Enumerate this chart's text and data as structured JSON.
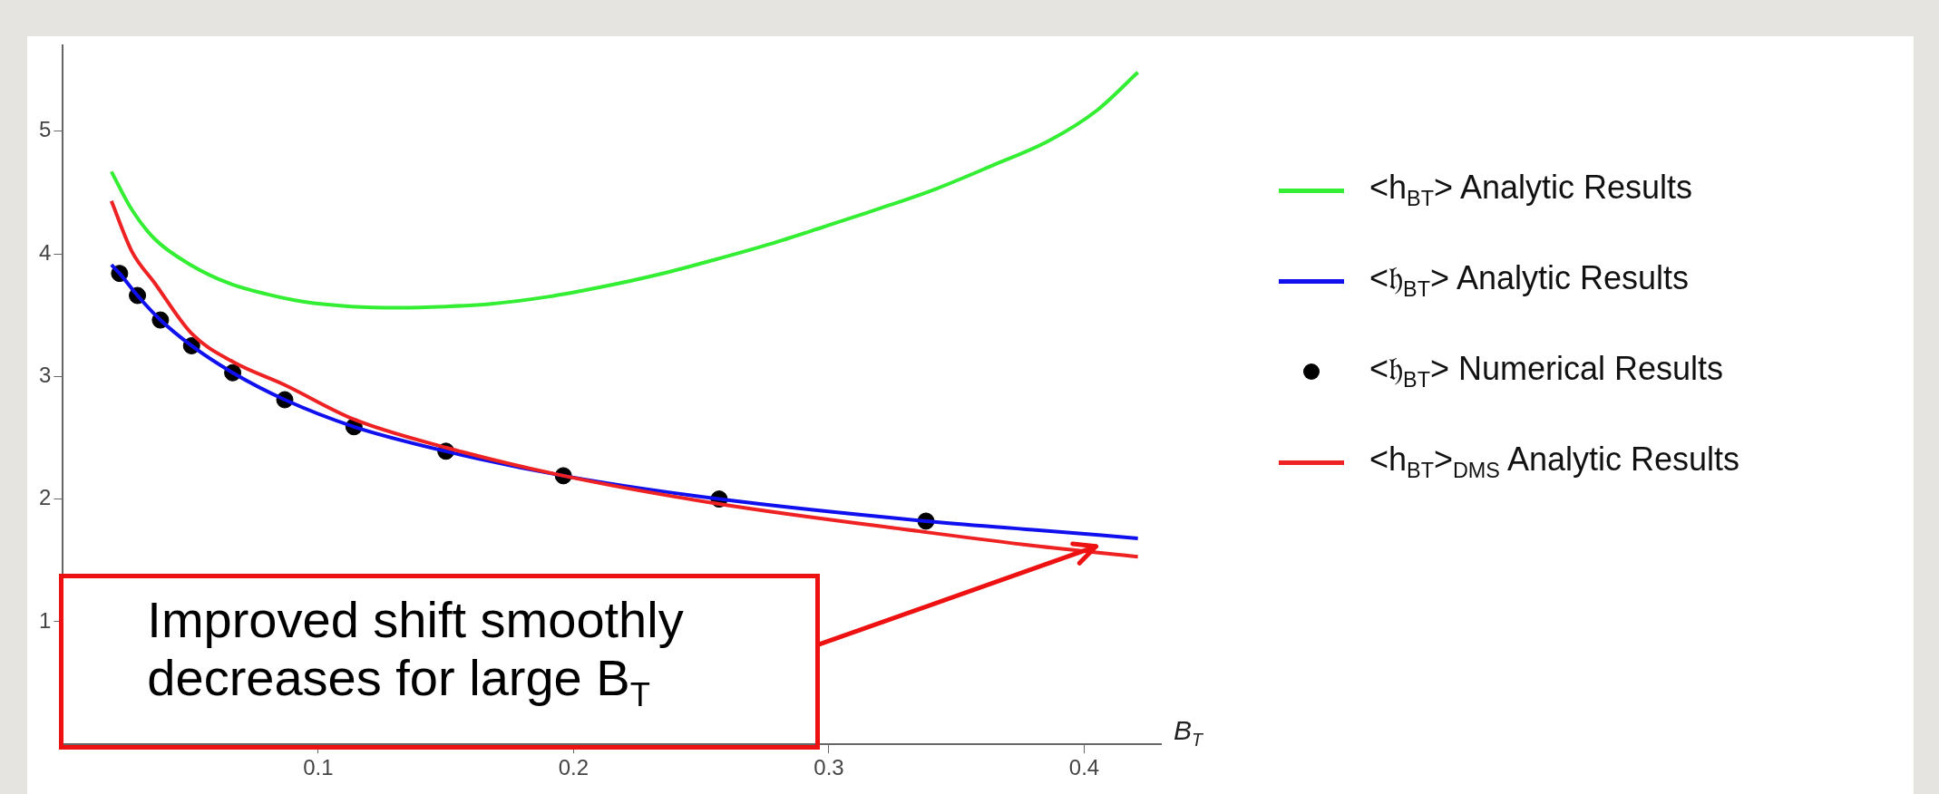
{
  "chart_data": {
    "type": "line",
    "xlabel": "B$_{T}$",
    "xlim": [
      0,
      0.43
    ],
    "ylim": [
      0,
      5.7
    ],
    "xticks": [
      0.1,
      0.2,
      0.3,
      0.4
    ],
    "yticks": [
      1,
      2,
      3,
      4,
      5
    ],
    "grid": false,
    "legend": "right",
    "line_style": "solid",
    "series": [
      {
        "name": "<h$_{BT}$> Analytic Results",
        "color": "#33ee33",
        "x": [
          0.019,
          0.027,
          0.036,
          0.05,
          0.065,
          0.08,
          0.094,
          0.113,
          0.132,
          0.15,
          0.167,
          0.19,
          0.211,
          0.233,
          0.255,
          0.277,
          0.298,
          0.32,
          0.342,
          0.364,
          0.386,
          0.405,
          0.421
        ],
        "values": [
          4.67,
          4.36,
          4.12,
          3.91,
          3.76,
          3.67,
          3.61,
          3.57,
          3.56,
          3.57,
          3.59,
          3.65,
          3.73,
          3.83,
          3.95,
          4.08,
          4.22,
          4.37,
          4.53,
          4.72,
          4.92,
          5.17,
          5.48
        ]
      },
      {
        "name": "<𝔥$_{BT}$> Analytic Results",
        "color": "#1010ee",
        "x": [
          0.019,
          0.0222,
          0.0292,
          0.0382,
          0.0504,
          0.0665,
          0.0869,
          0.114,
          0.15,
          0.196,
          0.257,
          0.338,
          0.38,
          0.421
        ],
        "values": [
          3.91,
          3.84,
          3.66,
          3.46,
          3.25,
          3.03,
          2.81,
          2.59,
          2.39,
          2.19,
          2.0,
          1.82,
          1.75,
          1.68
        ]
      },
      {
        "name": "<𝔥$_{BT}$> Numerical Results",
        "type": "scatter",
        "marker": "circle",
        "color": "#000000",
        "x": [
          0.0222,
          0.0292,
          0.0382,
          0.0504,
          0.0665,
          0.0869,
          0.114,
          0.15,
          0.196,
          0.257,
          0.338
        ],
        "values": [
          3.84,
          3.66,
          3.46,
          3.25,
          3.03,
          2.81,
          2.59,
          2.39,
          2.19,
          2.0,
          1.82
        ]
      },
      {
        "name": "<h$_{BT}$>$_{DMS}$ Analytic Results",
        "color": "#ee2222",
        "x": [
          0.019,
          0.027,
          0.036,
          0.0504,
          0.0665,
          0.0869,
          0.114,
          0.15,
          0.196,
          0.257,
          0.338,
          0.38,
          0.421
        ],
        "values": [
          4.43,
          4.02,
          3.76,
          3.35,
          3.12,
          2.93,
          2.65,
          2.42,
          2.19,
          1.96,
          1.73,
          1.62,
          1.53
        ]
      }
    ],
    "annotations": [
      "Improved shift smoothly decreases for large B$_{T}$"
    ]
  }
}
